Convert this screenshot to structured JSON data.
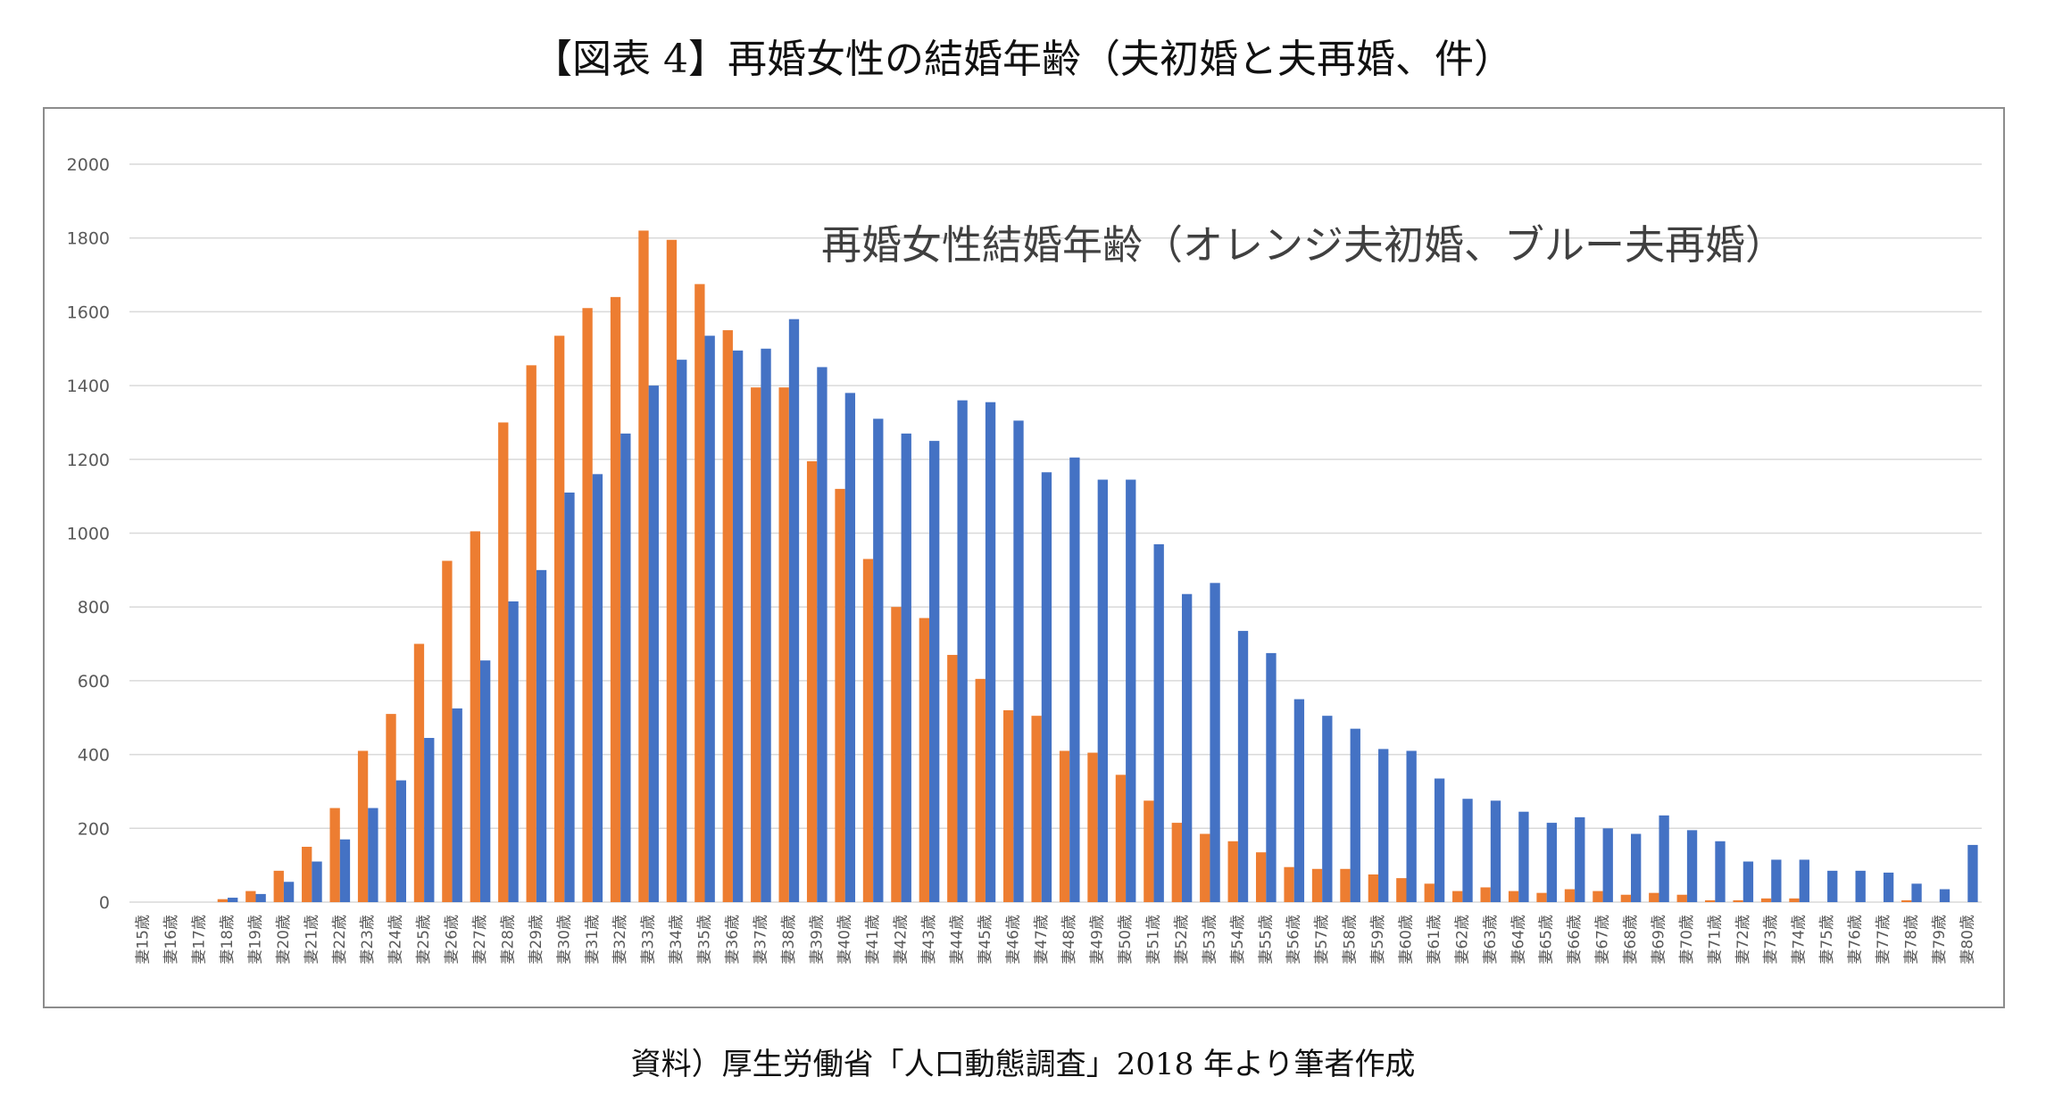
{
  "figure": {
    "title": "【図表 4】再婚女性の結婚年齢（夫初婚と夫再婚、件）",
    "source": "資料）厚生労働省「人口動態調査」2018 年より筆者作成"
  },
  "colors": {
    "first_marriage": "#ED7D31",
    "remarriage": "#4472C4",
    "grid": "#D9D9D9",
    "axis_text": "#595959"
  },
  "chart_data": {
    "type": "bar",
    "title": "再婚女性結婚年齢（オレンジ夫初婚、ブルー夫再婚）",
    "xlabel": "",
    "ylabel": "",
    "ylim": [
      0,
      2000
    ],
    "yticks": [
      0,
      200,
      400,
      600,
      800,
      1000,
      1200,
      1400,
      1600,
      1800,
      2000
    ],
    "grid": true,
    "categories": [
      "妻15歳",
      "妻16歳",
      "妻17歳",
      "妻18歳",
      "妻19歳",
      "妻20歳",
      "妻21歳",
      "妻22歳",
      "妻23歳",
      "妻24歳",
      "妻25歳",
      "妻26歳",
      "妻27歳",
      "妻28歳",
      "妻29歳",
      "妻30歳",
      "妻31歳",
      "妻32歳",
      "妻33歳",
      "妻34歳",
      "妻35歳",
      "妻36歳",
      "妻37歳",
      "妻38歳",
      "妻39歳",
      "妻40歳",
      "妻41歳",
      "妻42歳",
      "妻43歳",
      "妻44歳",
      "妻45歳",
      "妻46歳",
      "妻47歳",
      "妻48歳",
      "妻49歳",
      "妻50歳",
      "妻51歳",
      "妻52歳",
      "妻53歳",
      "妻54歳",
      "妻55歳",
      "妻56歳",
      "妻57歳",
      "妻58歳",
      "妻59歳",
      "妻60歳",
      "妻61歳",
      "妻62歳",
      "妻63歳",
      "妻64歳",
      "妻65歳",
      "妻66歳",
      "妻67歳",
      "妻68歳",
      "妻69歳",
      "妻70歳",
      "妻71歳",
      "妻72歳",
      "妻73歳",
      "妻74歳",
      "妻75歳",
      "妻76歳",
      "妻77歳",
      "妻78歳",
      "妻79歳",
      "妻80歳"
    ],
    "series": [
      {
        "values": [
          0,
          0,
          0,
          8,
          30,
          85,
          150,
          255,
          410,
          510,
          700,
          925,
          1005,
          1300,
          1455,
          1535,
          1610,
          1640,
          1820,
          1795,
          1675,
          1550,
          1395,
          1395,
          1195,
          1120,
          930,
          800,
          770,
          670,
          605,
          520,
          505,
          410,
          405,
          345,
          275,
          215,
          185,
          165,
          135,
          95,
          90,
          90,
          75,
          65,
          50,
          30,
          40,
          30,
          25,
          35,
          30,
          20,
          25,
          20,
          5,
          5,
          10,
          10,
          0,
          0,
          0,
          5,
          0,
          0
        ]
      },
      {
        "values": [
          0,
          0,
          0,
          12,
          22,
          55,
          110,
          170,
          255,
          330,
          445,
          525,
          655,
          815,
          900,
          1110,
          1160,
          1270,
          1400,
          1470,
          1535,
          1495,
          1500,
          1580,
          1450,
          1380,
          1310,
          1270,
          1250,
          1360,
          1355,
          1305,
          1165,
          1205,
          1145,
          1145,
          970,
          835,
          865,
          735,
          675,
          550,
          505,
          470,
          415,
          410,
          335,
          280,
          275,
          245,
          215,
          230,
          200,
          185,
          235,
          195,
          165,
          110,
          115,
          115,
          85,
          85,
          80,
          50,
          35,
          155
        ]
      }
    ]
  }
}
